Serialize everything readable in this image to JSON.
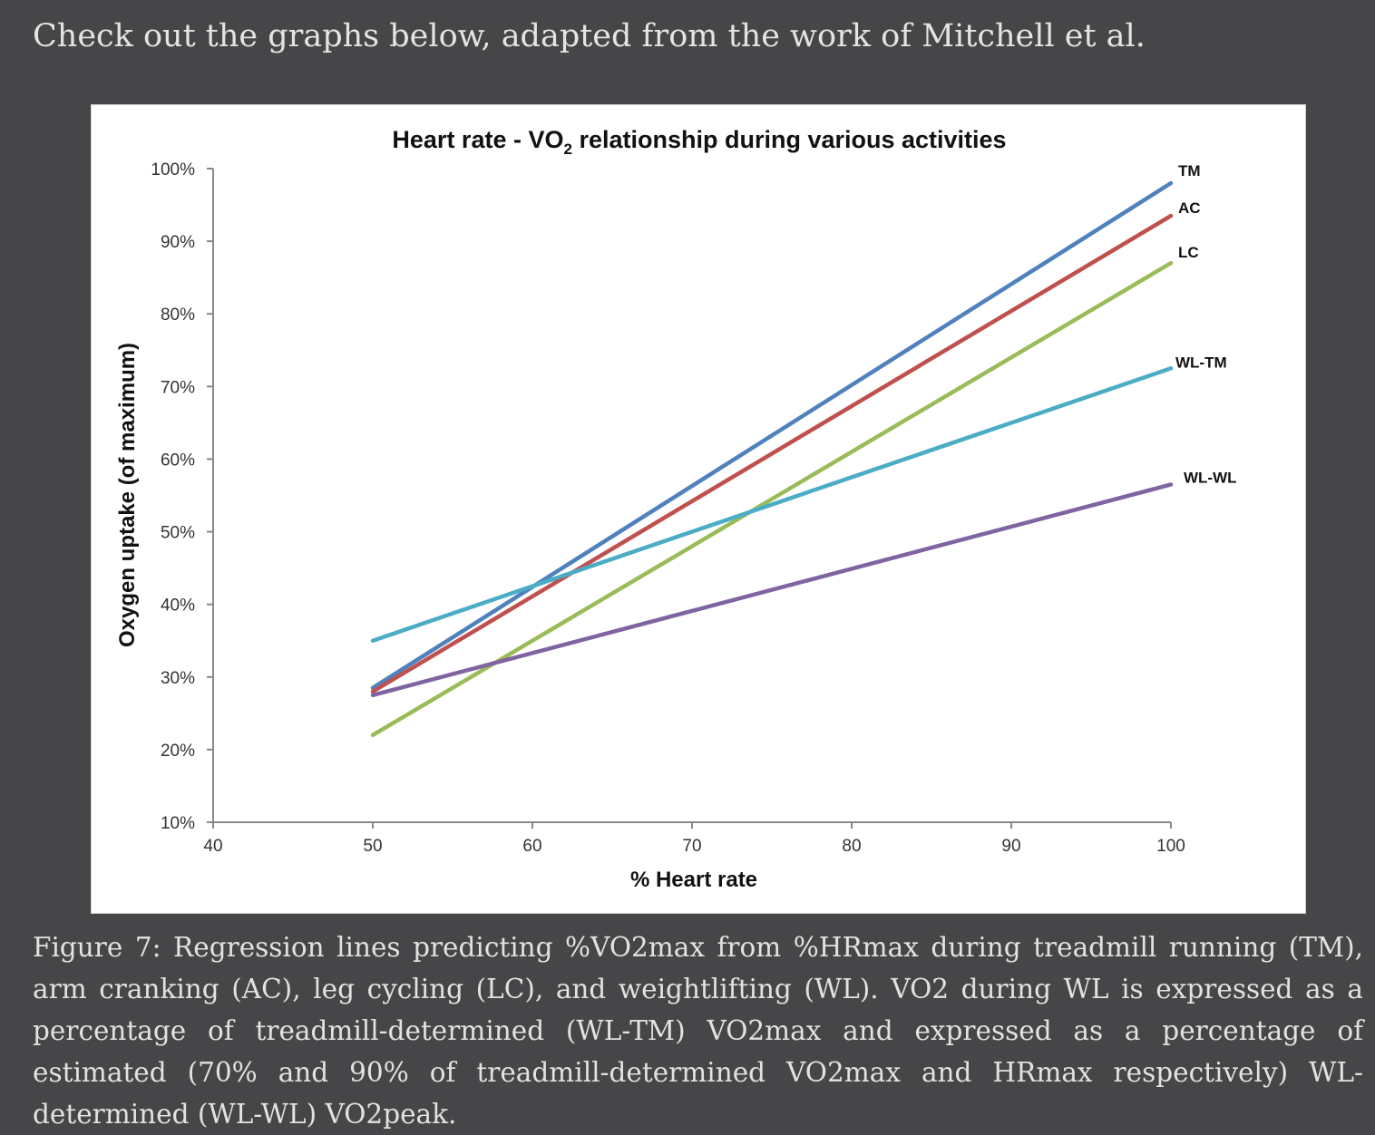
{
  "intro": "Check out the graphs below, adapted from the work of Mitchell et al.",
  "caption": "Figure 7: Regression lines predicting %VO2max from %HRmax during treadmill running (TM), arm cranking (AC), leg cycling (LC), and weightlifting (WL). VO2 during WL is expressed as a percentage of treadmill-determined (WL-TM) VO2max and expressed as a percentage of estimated (70% and 90% of treadmill-determined VO2max and HRmax respectively) WL-determined (WL-WL) VO2peak.",
  "chart_data": {
    "type": "line",
    "title": {
      "main": "Heart rate - VO",
      "sub": "2",
      "rest": " relationship during various activities"
    },
    "xlabel": "% Heart rate",
    "ylabel": "Oxygen uptake (of maximum)",
    "xlim": [
      40,
      100
    ],
    "ylim": [
      0.1,
      1.0
    ],
    "x_ticks": [
      "40",
      "50",
      "60",
      "70",
      "80",
      "90",
      "100"
    ],
    "y_ticks": [
      "10%",
      "20%",
      "30%",
      "40%",
      "50%",
      "60%",
      "70%",
      "80%",
      "90%",
      "100%"
    ],
    "grid": false,
    "legend": "line-end labels",
    "series": [
      {
        "name": "TM",
        "color": "#4f81bd",
        "x": [
          50,
          100
        ],
        "y": [
          0.285,
          0.98
        ]
      },
      {
        "name": "AC",
        "color": "#c0504d",
        "x": [
          50,
          100
        ],
        "y": [
          0.28,
          0.935
        ]
      },
      {
        "name": "LC",
        "color": "#9bbb59",
        "x": [
          50,
          100
        ],
        "y": [
          0.22,
          0.87
        ]
      },
      {
        "name": "WL-TM",
        "color": "#4bacc6",
        "x": [
          50,
          100
        ],
        "y": [
          0.35,
          0.725
        ]
      },
      {
        "name": "WL-WL",
        "color": "#8064a2",
        "x": [
          50,
          100
        ],
        "y": [
          0.275,
          0.565
        ]
      }
    ]
  }
}
